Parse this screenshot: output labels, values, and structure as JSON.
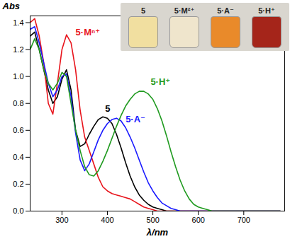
{
  "chart_data": {
    "type": "line",
    "x_label": "λ/nm",
    "y_label": "Abs",
    "xlim": [
      230,
      790
    ],
    "xticks": [
      300,
      400,
      500,
      600,
      700
    ],
    "ylim": [
      0,
      1.45
    ],
    "yticks": [
      {
        "value": 0,
        "label": "0.0"
      },
      0.2,
      0.4,
      0.6,
      0.8,
      {
        "value": 1,
        "label": "1.0"
      },
      1.2,
      1.4
    ],
    "grid": false,
    "x": [
      230,
      240,
      250,
      260,
      270,
      280,
      290,
      300,
      310,
      320,
      330,
      340,
      350,
      360,
      370,
      380,
      390,
      400,
      410,
      420,
      430,
      440,
      450,
      460,
      470,
      480,
      490,
      500,
      510,
      520,
      530,
      540,
      550,
      560,
      570,
      580,
      590,
      600,
      610,
      620,
      630,
      640,
      650,
      660,
      670,
      680,
      690,
      700,
      710,
      720,
      730,
      740,
      750,
      760,
      770,
      780
    ],
    "series": [
      {
        "name": "5",
        "color": "#000000",
        "values": [
          1.3,
          1.33,
          1.2,
          1.05,
          0.9,
          0.8,
          0.85,
          0.98,
          1.05,
          0.9,
          0.6,
          0.48,
          0.5,
          0.57,
          0.63,
          0.68,
          0.7,
          0.69,
          0.65,
          0.57,
          0.47,
          0.36,
          0.26,
          0.18,
          0.12,
          0.08,
          0.05,
          0.03,
          0.02,
          0.01,
          0,
          0,
          0,
          0,
          0,
          0,
          0,
          0,
          0,
          0,
          0,
          0,
          0,
          0,
          0,
          0,
          0,
          0,
          0,
          0,
          0,
          0,
          0,
          0,
          0,
          0
        ]
      },
      {
        "name": "5·Mⁿ⁺",
        "color": "#e8141c",
        "values": [
          1.4,
          1.43,
          1.3,
          1.1,
          0.8,
          0.72,
          0.95,
          1.2,
          1.31,
          1.25,
          1.05,
          0.75,
          0.55,
          0.45,
          0.35,
          0.25,
          0.18,
          0.15,
          0.13,
          0.12,
          0.11,
          0.1,
          0.09,
          0.07,
          0.05,
          0.03,
          0.02,
          0.01,
          0,
          0,
          0,
          0,
          0,
          0,
          0,
          0,
          0,
          0,
          0,
          0,
          0,
          0,
          0,
          0,
          0,
          0,
          0,
          0,
          0,
          0,
          0,
          0,
          0,
          0,
          0,
          0
        ]
      },
      {
        "name": "5·A⁻",
        "color": "#1a1aff",
        "values": [
          1.35,
          1.37,
          1.25,
          1.1,
          0.95,
          0.85,
          0.9,
          1.0,
          1.02,
          0.85,
          0.58,
          0.38,
          0.3,
          0.35,
          0.44,
          0.53,
          0.6,
          0.65,
          0.68,
          0.69,
          0.67,
          0.62,
          0.55,
          0.47,
          0.38,
          0.29,
          0.21,
          0.15,
          0.1,
          0.06,
          0.04,
          0.02,
          0.01,
          0,
          0,
          0,
          0,
          0,
          0,
          0,
          0,
          0,
          0,
          0,
          0,
          0,
          0,
          0,
          0,
          0,
          0,
          0,
          0,
          0,
          0,
          0
        ]
      },
      {
        "name": "5·H⁺",
        "color": "#1f9a1f",
        "values": [
          1.2,
          1.28,
          1.2,
          1.05,
          0.95,
          0.9,
          0.95,
          1.03,
          1.0,
          0.8,
          0.6,
          0.45,
          0.33,
          0.27,
          0.26,
          0.3,
          0.37,
          0.45,
          0.54,
          0.63,
          0.71,
          0.78,
          0.83,
          0.87,
          0.89,
          0.89,
          0.87,
          0.83,
          0.76,
          0.67,
          0.56,
          0.44,
          0.33,
          0.23,
          0.15,
          0.09,
          0.05,
          0.03,
          0.02,
          0.01,
          0,
          0,
          0,
          0,
          0,
          0,
          0,
          0,
          0,
          0,
          0,
          0,
          0,
          0,
          0,
          0
        ]
      }
    ],
    "annotations": [
      {
        "text": "5",
        "x": 395,
        "y": 0.76,
        "color": "#000000"
      },
      {
        "text": "5·Mⁿ⁺",
        "x": 330,
        "y": 1.33,
        "color": "#e8141c"
      },
      {
        "text": "5·A⁻",
        "x": 440,
        "y": 0.68,
        "color": "#1a1aff"
      },
      {
        "text": "5·H⁺",
        "x": 495,
        "y": 0.96,
        "color": "#1f9a1f"
      }
    ],
    "inset": {
      "labels": [
        "5",
        "5·M²⁺",
        "5·A⁻",
        "5·H⁺"
      ],
      "colors": [
        "#f1dfa0",
        "#efe5cc",
        "#e98a2a",
        "#a5251a"
      ]
    }
  }
}
